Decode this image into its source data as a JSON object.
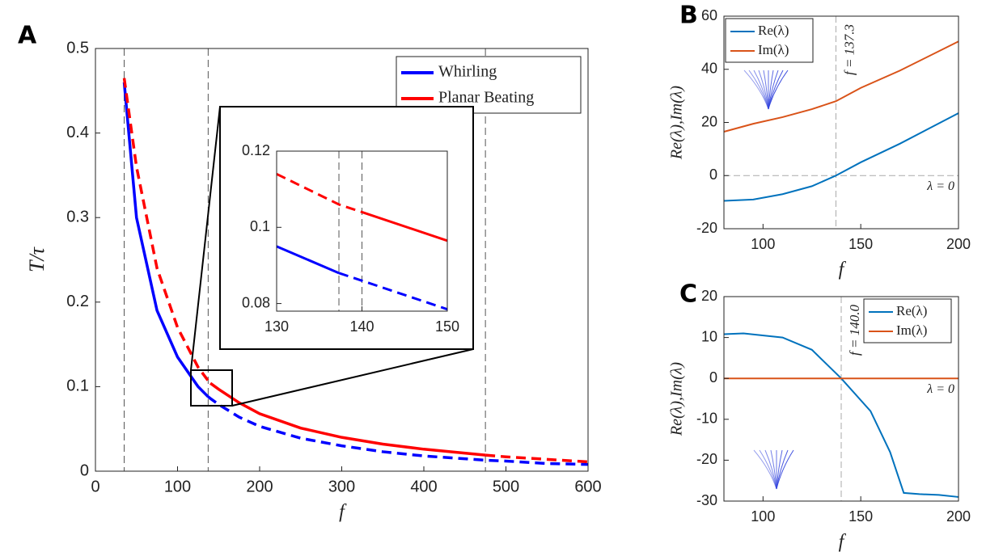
{
  "chart_data": [
    {
      "type": "line",
      "panel": "A",
      "x_label": "f",
      "y_label": "T/τ",
      "xlim": [
        0,
        600
      ],
      "ylim": [
        0,
        0.5
      ],
      "xticks": [
        0,
        100,
        200,
        300,
        400,
        500,
        600
      ],
      "yticks": [
        0,
        0.1,
        0.2,
        0.3,
        0.4,
        0.5
      ],
      "legend": "upper right",
      "vlines": [
        35,
        137.3,
        475
      ],
      "x": [
        35,
        50,
        75,
        100,
        125,
        137.3,
        140,
        150,
        175,
        200,
        250,
        300,
        350,
        400,
        475,
        500,
        550,
        600
      ],
      "series": [
        {
          "name": "Whirling",
          "color": "#0000ff",
          "solid": [
            35,
            137.3
          ],
          "values": [
            0.46,
            0.3,
            0.19,
            0.135,
            0.1,
            0.088,
            0.086,
            0.079,
            0.064,
            0.053,
            0.039,
            0.03,
            0.023,
            0.018,
            0.013,
            0.012,
            0.009,
            0.008
          ]
        },
        {
          "name": "Planar Beating",
          "color": "#ff0000",
          "solid": [
            140,
            475
          ],
          "values": [
            0.465,
            0.36,
            0.24,
            0.17,
            0.123,
            0.107,
            0.104,
            0.097,
            0.081,
            0.068,
            0.051,
            0.04,
            0.032,
            0.026,
            0.019,
            0.017,
            0.014,
            0.011
          ]
        }
      ]
    },
    {
      "type": "line",
      "xlim": [
        130,
        150
      ],
      "ylim": [
        0.078,
        0.12
      ],
      "xticks": [
        130,
        140,
        150
      ],
      "yticks": [
        0.08,
        0.1,
        0.12
      ],
      "vlines": [
        137.3,
        140
      ],
      "x": [
        130,
        137.3,
        140,
        150
      ],
      "series": [
        {
          "color": "#0000ff",
          "solid": [
            130,
            137.3
          ],
          "values": [
            0.095,
            0.088,
            0.086,
            0.0785
          ]
        },
        {
          "color": "#ff0000",
          "solid": [
            140,
            150
          ],
          "values": [
            0.114,
            0.106,
            0.104,
            0.0965
          ]
        }
      ]
    },
    {
      "type": "line",
      "panel": "B",
      "x_label": "f",
      "y_label": "Re(λ),Im(λ)",
      "xlim": [
        80,
        200
      ],
      "ylim": [
        -20,
        60
      ],
      "xticks": [
        100,
        150,
        200
      ],
      "yticks": [
        -20,
        0,
        20,
        40,
        60
      ],
      "legend": "upper left",
      "vline": {
        "value": 137.3,
        "label": "f = 137.3"
      },
      "hline": {
        "value": 0,
        "label": "λ = 0"
      },
      "x": [
        80,
        95,
        110,
        125,
        137.3,
        150,
        170,
        200
      ],
      "series": [
        {
          "name": "Re(λ)",
          "color": "#0072bd",
          "values": [
            -9.5,
            -9,
            -7,
            -4,
            0,
            5,
            12,
            23.5
          ]
        },
        {
          "name": "Im(λ)",
          "color": "#d95319",
          "values": [
            16.5,
            19.5,
            22,
            25,
            28,
            33,
            39.5,
            50.5
          ]
        }
      ]
    },
    {
      "type": "line",
      "panel": "C",
      "x_label": "f",
      "y_label": "Re(λ),Im(λ)",
      "xlim": [
        80,
        200
      ],
      "ylim": [
        -30,
        20
      ],
      "xticks": [
        100,
        150,
        200
      ],
      "yticks": [
        -30,
        -20,
        -10,
        0,
        10,
        20
      ],
      "legend": "upper right",
      "vline": {
        "value": 140,
        "label": "f = 140.0"
      },
      "hline": {
        "value": 0,
        "label": "λ = 0"
      },
      "x": [
        80,
        90,
        110,
        125,
        140,
        155,
        165,
        172,
        180,
        190,
        200
      ],
      "series": [
        {
          "name": "Re(λ)",
          "color": "#0072bd",
          "values": [
            10.8,
            11,
            10,
            7,
            0,
            -8,
            -18,
            -28,
            -28.3,
            -28.5,
            -29
          ]
        },
        {
          "name": "Im(λ)",
          "color": "#d95319",
          "values": [
            0,
            0,
            0,
            0,
            0,
            0,
            0,
            0,
            0,
            0,
            0
          ]
        }
      ]
    }
  ]
}
